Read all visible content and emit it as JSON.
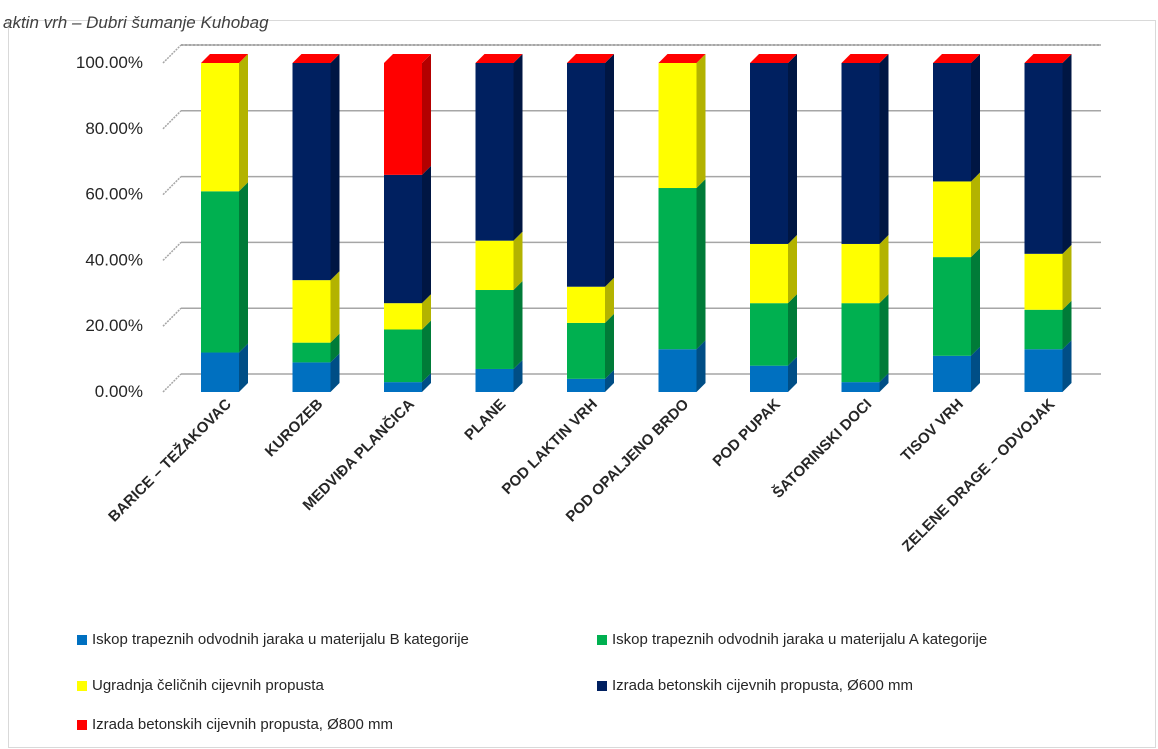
{
  "header": {
    "title_fragment": "aktin vrh – Dubri šumanje Kuhobag"
  },
  "chart_data": {
    "type": "bar",
    "stacked": true,
    "percent": true,
    "categories": [
      "BARICE – TEŽAKOVAC",
      "KUROZEB",
      "MEDVIĐA PLANČICA",
      "PLANE",
      "POD LAKTIN VRH",
      "POD OPALJENO BRDO",
      "POD PUPAK",
      "ŠATORINSKI DOCI",
      "TISOV VRH",
      "ZELENE DRAGE – ODVOJAK"
    ],
    "yticks": [
      "0.00%",
      "20.00%",
      "40.00%",
      "60.00%",
      "80.00%",
      "100.00%"
    ],
    "ylim": [
      0,
      100
    ],
    "grid": true,
    "legend_position": "bottom",
    "series": [
      {
        "name": "Iskop trapeznih odvodnih jaraka u materijalu B kategorije",
        "color": "#0070c0",
        "values": [
          12,
          9,
          3,
          7,
          4,
          13,
          8,
          3,
          11,
          13
        ]
      },
      {
        "name": "Iskop trapeznih odvodnih jaraka u materijalu A kategorije",
        "color": "#00b050",
        "values": [
          49,
          6,
          16,
          24,
          17,
          49,
          19,
          24,
          30,
          12
        ]
      },
      {
        "name": "Ugradnja čeličnih cijevnih propusta",
        "color": "#ffff00",
        "values": [
          39,
          19,
          8,
          15,
          11,
          38,
          18,
          18,
          23,
          17
        ]
      },
      {
        "name": "Izrada betonskih cijevnih propusta, Ø600 mm",
        "color": "#002060",
        "values": [
          0,
          66,
          39,
          54,
          68,
          0,
          55,
          55,
          36,
          58
        ]
      },
      {
        "name": "Izrada betonskih cijevnih propusta, Ø800 mm",
        "color": "#ff0000",
        "values": [
          0,
          0,
          34,
          0,
          0,
          0,
          0,
          0,
          0,
          0
        ]
      }
    ]
  }
}
